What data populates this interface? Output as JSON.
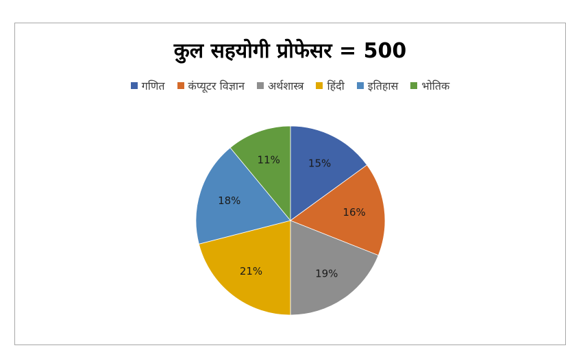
{
  "chart_data": {
    "type": "pie",
    "title": "कुल सहयोगी प्रोफेसर =  500",
    "legend_position": "top",
    "categories": [
      "गणित",
      "कंप्यूटर विज्ञान",
      "अर्थशास्त्र",
      "हिंदी",
      "इतिहास",
      "भोतिक"
    ],
    "values": [
      15,
      16,
      19,
      21,
      18,
      11
    ],
    "labels": [
      "15%",
      "16%",
      "19%",
      "21%",
      "18%",
      "11%"
    ],
    "colors": [
      "#4063a8",
      "#d46a2a",
      "#8e8e8e",
      "#e0a800",
      "#4f88be",
      "#629b3e"
    ]
  }
}
